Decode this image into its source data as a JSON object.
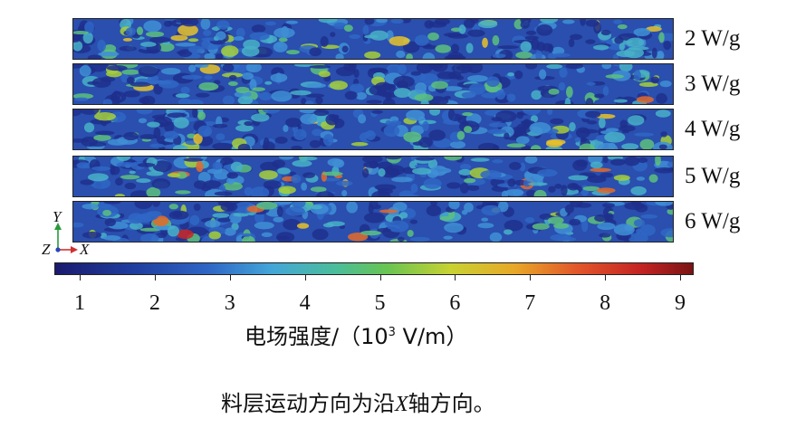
{
  "strips": [
    {
      "label": "2 W/g",
      "intensity": 0.3
    },
    {
      "label": "3 W/g",
      "intensity": 0.4
    },
    {
      "label": "4 W/g",
      "intensity": 0.5
    },
    {
      "label": "5 W/g",
      "intensity": 0.6
    },
    {
      "label": "6 W/g",
      "intensity": 0.7
    }
  ],
  "axes": {
    "y": "Y",
    "z": "Z",
    "x": "X"
  },
  "colorbar": {
    "ticks": [
      "1",
      "2",
      "3",
      "4",
      "5",
      "6",
      "7",
      "8",
      "9"
    ],
    "range": [
      1,
      9
    ],
    "title_main": "电场强度/（10",
    "title_sup": "3",
    "title_unit": " V/m）"
  },
  "caption": {
    "pre": "料层运动方向为沿",
    "axis": "X",
    "post": "轴方向。"
  }
}
